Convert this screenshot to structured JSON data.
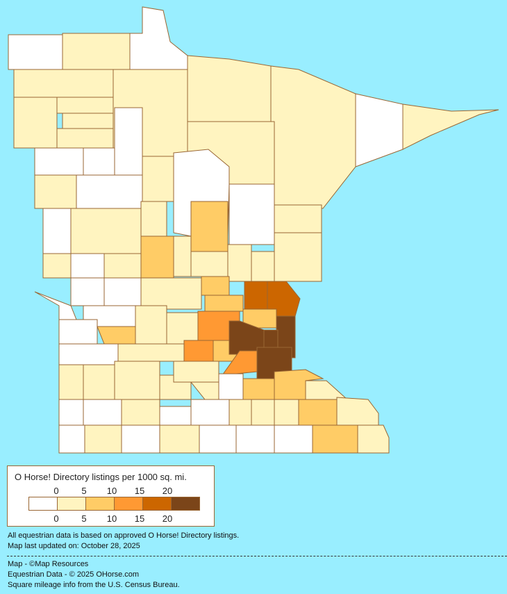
{
  "legend": {
    "title": "O Horse! Directory listings per 1000 sq. mi.",
    "top_ticks": [
      "0",
      "5",
      "10",
      "15",
      "20"
    ],
    "bottom_ticks": [
      "0",
      "5",
      "10",
      "15",
      "20"
    ],
    "bins": [
      {
        "range": "0",
        "color": "#FFFFFF"
      },
      {
        "range": "0-5",
        "color": "#FFF4C0"
      },
      {
        "range": "5-10",
        "color": "#FFCC66"
      },
      {
        "range": "10-15",
        "color": "#FF9933"
      },
      {
        "range": "15-20",
        "color": "#CC6600"
      },
      {
        "range": "20+",
        "color": "#7B4519"
      }
    ]
  },
  "notes": {
    "line1": "All equestrian data is based on approved O Horse! Directory listings.",
    "line2": "Map last updated on: October 28, 2025"
  },
  "credits": {
    "line1": "Map - ©Map Resources",
    "line2": "Equestrian Data - © 2025 OHorse.com",
    "line3": "Square mileage info from the U.S. Census Bureau."
  },
  "colors": {
    "background": "#99EEFF",
    "border": "#996633"
  }
}
